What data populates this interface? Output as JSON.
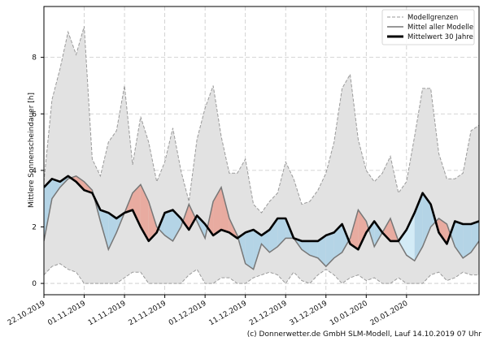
{
  "chart_data": {
    "type": "area",
    "ylabel": "Mittlere Sonnenscheindauer [h]",
    "ylim": [
      -0.4,
      9.8
    ],
    "yticks": [
      0,
      2,
      4,
      6,
      8
    ],
    "x_start": "22.10.2019",
    "x_end": "07.02.2020",
    "xticks": [
      "22.10.2019",
      "01.11.2019",
      "11.11.2019",
      "21.11.2019",
      "01.12.2019",
      "11.12.2019",
      "21.12.2019",
      "31.12.2019",
      "10.01.2020",
      "20.01.2020"
    ],
    "grid": true,
    "legend_position": "top-right",
    "legend": [
      "Modellgrenzen",
      "Mittel aller Modelle",
      "Mittelwert 30 Jahre"
    ],
    "colors": {
      "envelope_fill": "#e2e2e2",
      "envelope_line": "#9a9a9a",
      "model_mean": "#777777",
      "climate_mean": "#000000",
      "above_fill": "#e8aba0",
      "below_fill": "#b4d4e6",
      "below_fill_light": "#d3ebf6"
    },
    "credit": "(c) Donnerwetter.de GmbH SLM-Modell, Lauf 14.10.2019 07 Uhr",
    "series": [
      {
        "name": "Modellgrenzen",
        "x": [
          "22.10.2019",
          "24.10.2019",
          "26.10.2019",
          "28.10.2019",
          "30.10.2019",
          "01.11.2019",
          "03.11.2019",
          "05.11.2019",
          "07.11.2019",
          "09.11.2019",
          "11.11.2019",
          "13.11.2019",
          "15.11.2019",
          "17.11.2019",
          "19.11.2019",
          "21.11.2019",
          "23.11.2019",
          "25.11.2019",
          "27.11.2019",
          "29.11.2019",
          "01.12.2019",
          "03.12.2019",
          "05.12.2019",
          "07.12.2019",
          "09.12.2019",
          "11.12.2019",
          "13.12.2019",
          "15.12.2019",
          "17.12.2019",
          "19.12.2019",
          "21.12.2019",
          "23.12.2019",
          "25.12.2019",
          "27.12.2019",
          "29.12.2019",
          "31.12.2019",
          "02.01.2020",
          "04.01.2020",
          "06.01.2020",
          "08.01.2020",
          "10.01.2020",
          "12.01.2020",
          "14.01.2020",
          "16.01.2020",
          "18.01.2020",
          "20.01.2020",
          "22.01.2020",
          "24.01.2020",
          "26.01.2020",
          "28.01.2020",
          "30.01.2020",
          "01.02.2020",
          "03.02.2020",
          "05.02.2020",
          "07.02.2020"
        ],
        "upper": [
          3.6,
          6.5,
          7.6,
          8.9,
          8.1,
          9.1,
          4.4,
          3.8,
          5.0,
          5.4,
          7.0,
          4.2,
          5.9,
          5.0,
          3.6,
          4.3,
          5.5,
          4.0,
          2.9,
          5.1,
          6.2,
          7.0,
          5.2,
          3.9,
          3.9,
          4.4,
          2.8,
          2.5,
          2.9,
          3.2,
          4.3,
          3.7,
          2.8,
          2.9,
          3.3,
          3.9,
          5.0,
          6.9,
          7.4,
          5.1,
          4.0,
          3.6,
          3.9,
          4.5,
          3.2,
          3.6,
          5.2,
          6.9,
          6.9,
          4.6,
          3.7,
          3.7,
          3.9,
          5.4,
          5.6
        ],
        "lower": [
          0.3,
          0.6,
          0.7,
          0.5,
          0.4,
          0.0,
          0.0,
          0.0,
          0.0,
          0.0,
          0.2,
          0.4,
          0.4,
          0.0,
          0.0,
          0.0,
          0.0,
          0.0,
          0.3,
          0.5,
          0.0,
          0.0,
          0.2,
          0.2,
          0.0,
          0.0,
          0.2,
          0.3,
          0.4,
          0.3,
          0.0,
          0.4,
          0.1,
          0.0,
          0.3,
          0.5,
          0.3,
          0.0,
          0.2,
          0.3,
          0.1,
          0.2,
          0.0,
          0.0,
          0.2,
          0.0,
          0.0,
          0.0,
          0.3,
          0.4,
          0.1,
          0.2,
          0.4,
          0.3,
          0.3
        ]
      },
      {
        "name": "Mittel aller Modelle",
        "x": [
          "22.10.2019",
          "24.10.2019",
          "26.10.2019",
          "28.10.2019",
          "30.10.2019",
          "01.11.2019",
          "03.11.2019",
          "05.11.2019",
          "07.11.2019",
          "09.11.2019",
          "11.11.2019",
          "13.11.2019",
          "15.11.2019",
          "17.11.2019",
          "19.11.2019",
          "21.11.2019",
          "23.11.2019",
          "25.11.2019",
          "27.11.2019",
          "29.11.2019",
          "01.12.2019",
          "03.12.2019",
          "05.12.2019",
          "07.12.2019",
          "09.12.2019",
          "11.12.2019",
          "13.12.2019",
          "15.12.2019",
          "17.12.2019",
          "19.12.2019",
          "21.12.2019",
          "23.12.2019",
          "25.12.2019",
          "27.12.2019",
          "29.12.2019",
          "31.12.2019",
          "02.01.2020",
          "04.01.2020",
          "06.01.2020",
          "08.01.2020",
          "10.01.2020",
          "12.01.2020",
          "14.01.2020",
          "16.01.2020",
          "18.01.2020",
          "20.01.2020",
          "22.01.2020",
          "24.01.2020",
          "26.01.2020",
          "28.01.2020",
          "30.01.2020",
          "01.02.2020",
          "03.02.2020",
          "05.02.2020",
          "07.02.2020"
        ],
        "values": [
          1.5,
          3.0,
          3.4,
          3.7,
          3.8,
          3.6,
          3.3,
          2.2,
          1.2,
          1.8,
          2.5,
          3.2,
          3.5,
          2.9,
          2.0,
          1.7,
          1.5,
          2.0,
          2.8,
          2.2,
          1.6,
          2.9,
          3.4,
          2.3,
          1.7,
          0.7,
          0.5,
          1.4,
          1.1,
          1.3,
          1.6,
          1.6,
          1.2,
          1.0,
          0.9,
          0.6,
          0.9,
          1.1,
          1.6,
          2.6,
          2.2,
          1.3,
          1.8,
          2.3,
          1.5,
          1.0,
          0.8,
          1.3,
          2.0,
          2.3,
          2.1,
          1.3,
          0.9,
          1.1,
          1.5
        ]
      },
      {
        "name": "Mittelwert 30 Jahre",
        "x": [
          "22.10.2019",
          "24.10.2019",
          "26.10.2019",
          "28.10.2019",
          "30.10.2019",
          "01.11.2019",
          "03.11.2019",
          "05.11.2019",
          "07.11.2019",
          "09.11.2019",
          "11.11.2019",
          "13.11.2019",
          "15.11.2019",
          "17.11.2019",
          "19.11.2019",
          "21.11.2019",
          "23.11.2019",
          "25.11.2019",
          "27.11.2019",
          "29.11.2019",
          "01.12.2019",
          "03.12.2019",
          "05.12.2019",
          "07.12.2019",
          "09.12.2019",
          "11.12.2019",
          "13.12.2019",
          "15.12.2019",
          "17.12.2019",
          "19.12.2019",
          "21.12.2019",
          "23.12.2019",
          "25.12.2019",
          "27.12.2019",
          "29.12.2019",
          "31.12.2019",
          "02.01.2020",
          "04.01.2020",
          "06.01.2020",
          "08.01.2020",
          "10.01.2020",
          "12.01.2020",
          "14.01.2020",
          "16.01.2020",
          "18.01.2020",
          "20.01.2020",
          "22.01.2020",
          "24.01.2020",
          "26.01.2020",
          "28.01.2020",
          "30.01.2020",
          "01.02.2020",
          "03.02.2020",
          "05.02.2020",
          "07.02.2020"
        ],
        "values": [
          3.4,
          3.7,
          3.6,
          3.8,
          3.6,
          3.3,
          3.2,
          2.6,
          2.5,
          2.3,
          2.5,
          2.6,
          2.0,
          1.5,
          1.8,
          2.5,
          2.6,
          2.3,
          1.9,
          2.4,
          2.1,
          1.7,
          1.9,
          1.8,
          1.6,
          1.8,
          1.9,
          1.7,
          1.9,
          2.3,
          2.3,
          1.6,
          1.5,
          1.5,
          1.5,
          1.7,
          1.8,
          2.1,
          1.4,
          1.2,
          1.8,
          2.2,
          1.8,
          1.5,
          1.5,
          1.9,
          2.5,
          3.2,
          2.8,
          1.8,
          1.4,
          2.2,
          2.1,
          2.1,
          2.2
        ]
      }
    ]
  }
}
